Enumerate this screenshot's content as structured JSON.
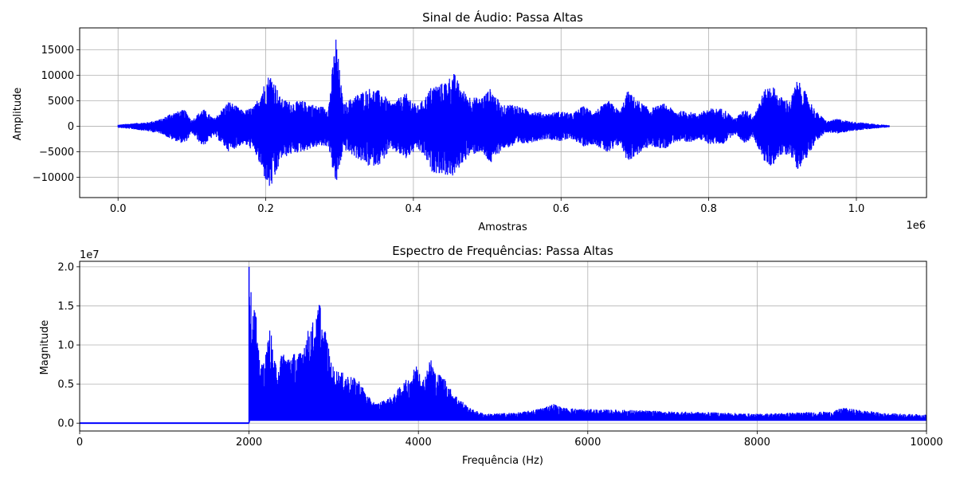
{
  "chart_data": [
    {
      "type": "line",
      "title": "Sinal de Áudio: Passa Altas",
      "xlabel": "Amostras",
      "ylabel": "Amplitude",
      "x_offset_text": "1e6",
      "xlim": [
        -52000,
        1095000
      ],
      "ylim": [
        -14000,
        19300
      ],
      "xticks": [
        0,
        200000,
        400000,
        600000,
        800000,
        1000000
      ],
      "xtick_labels": [
        "0.0",
        "0.2",
        "0.4",
        "0.6",
        "0.8",
        "1.0"
      ],
      "yticks": [
        -10000,
        -5000,
        0,
        5000,
        10000,
        15000
      ],
      "ytick_labels": [
        "−10000",
        "−5000",
        "0",
        "5000",
        "10000",
        "15000"
      ],
      "grid": true,
      "color": "#0000ff",
      "series": [
        {
          "x_range": [
            0,
            1045000
          ],
          "envelope_x": [
            0,
            20000,
            40000,
            60000,
            70000,
            90000,
            100000,
            115000,
            130000,
            150000,
            170000,
            185000,
            195000,
            205000,
            212000,
            220000,
            235000,
            250000,
            270000,
            285000,
            295000,
            305000,
            320000,
            340000,
            355000,
            370000,
            380000,
            390000,
            405000,
            415000,
            425000,
            440000,
            455000,
            465000,
            475000,
            490000,
            505000,
            520000,
            535000,
            550000,
            565000,
            580000,
            600000,
            615000,
            630000,
            645000,
            665000,
            680000,
            690000,
            705000,
            720000,
            740000,
            755000,
            770000,
            785000,
            800000,
            820000,
            835000,
            850000,
            860000,
            875000,
            885000,
            895000,
            910000,
            920000,
            930000,
            945000,
            960000,
            975000,
            990000,
            1010000,
            1030000,
            1045000
          ],
          "envelope_top": [
            300,
            600,
            800,
            1500,
            2500,
            3300,
            1200,
            3500,
            1500,
            5000,
            3000,
            4000,
            7500,
            10400,
            9000,
            5500,
            4800,
            5000,
            4000,
            3800,
            18000,
            4300,
            6000,
            7500,
            7000,
            4500,
            5500,
            6500,
            4000,
            5500,
            8000,
            8500,
            10500,
            7500,
            6000,
            5500,
            7500,
            4000,
            4500,
            3500,
            3000,
            2500,
            3000,
            2500,
            4000,
            3000,
            5000,
            3000,
            7000,
            5000,
            3500,
            4500,
            3000,
            3000,
            2500,
            3500,
            3500,
            1500,
            3500,
            2000,
            7000,
            8500,
            6000,
            5000,
            9200,
            7000,
            3000,
            1000,
            1500,
            1000,
            700,
            400,
            200
          ],
          "envelope_bottom": [
            -300,
            -600,
            -1000,
            -1500,
            -2500,
            -3500,
            -1400,
            -4000,
            -1800,
            -5000,
            -3500,
            -5000,
            -9000,
            -12500,
            -11000,
            -6500,
            -5500,
            -5000,
            -4000,
            -4000,
            -12000,
            -4500,
            -6000,
            -8000,
            -7500,
            -4500,
            -5500,
            -6500,
            -4500,
            -6000,
            -9000,
            -9500,
            -10000,
            -7500,
            -6000,
            -5000,
            -7500,
            -4500,
            -4000,
            -3500,
            -3000,
            -2500,
            -3000,
            -2500,
            -4000,
            -3500,
            -5500,
            -3500,
            -7000,
            -5500,
            -4000,
            -4500,
            -3000,
            -3500,
            -2500,
            -3500,
            -3500,
            -1500,
            -3500,
            -2000,
            -7000,
            -8000,
            -6000,
            -5500,
            -8500,
            -7000,
            -3000,
            -1200,
            -1500,
            -1000,
            -700,
            -400,
            -200
          ]
        }
      ]
    },
    {
      "type": "line",
      "title": "Espectro de Frequências: Passa Altas",
      "xlabel": "Frequência (Hz)",
      "ylabel": "Magnitude",
      "y_offset_text": "1e7",
      "xlim": [
        0,
        10000
      ],
      "ylim": [
        -1000000,
        20700000
      ],
      "xticks": [
        0,
        2000,
        4000,
        6000,
        8000,
        10000
      ],
      "xtick_labels": [
        "0",
        "2000",
        "4000",
        "6000",
        "8000",
        "10000"
      ],
      "yticks": [
        0,
        5000000,
        10000000,
        15000000,
        20000000
      ],
      "ytick_labels": [
        "0.0",
        "0.5",
        "1.0",
        "1.5",
        "2.0"
      ],
      "grid": true,
      "color": "#0000ff",
      "series": [
        {
          "cutoff_hz": 2000,
          "flat_value": 0,
          "envelope_x": [
            2000,
            2010,
            2020,
            2050,
            2080,
            2100,
            2150,
            2200,
            2250,
            2300,
            2350,
            2400,
            2450,
            2500,
            2550,
            2600,
            2650,
            2700,
            2750,
            2800,
            2830,
            2870,
            2900,
            2950,
            3000,
            3100,
            3200,
            3300,
            3400,
            3500,
            3600,
            3700,
            3800,
            3900,
            3950,
            4000,
            4050,
            4100,
            4150,
            4200,
            4300,
            4400,
            4500,
            4600,
            4700,
            4800,
            5000,
            5200,
            5400,
            5600,
            5700,
            6000,
            6500,
            7000,
            7500,
            8000,
            8500,
            8900,
            9000,
            9500,
            10000
          ],
          "envelope_top": [
            19000,
            20000,
            17000,
            15000,
            15000,
            10000,
            7500,
            9000,
            12500,
            8000,
            7500,
            9500,
            8500,
            9000,
            9000,
            9000,
            10500,
            12000,
            13000,
            13500,
            16500,
            12000,
            12000,
            9000,
            7000,
            6500,
            6000,
            5500,
            3500,
            2500,
            3000,
            3500,
            5000,
            6000,
            7000,
            8000,
            5500,
            7000,
            8500,
            6500,
            6000,
            4000,
            3000,
            2000,
            1500,
            1200,
            1300,
            1400,
            1800,
            2500,
            2000,
            1800,
            1700,
            1500,
            1400,
            1200,
            1400,
            1500,
            2000,
            1300,
            1100
          ],
          "envelope_bottom": [
            0,
            300,
            300,
            300,
            300,
            300,
            300,
            300,
            300,
            300,
            300,
            300,
            300,
            300,
            300,
            300,
            300,
            300,
            300,
            300,
            300,
            300,
            300,
            300,
            300,
            300,
            300,
            300,
            300,
            300,
            300,
            300,
            300,
            300,
            300,
            300,
            300,
            300,
            300,
            300,
            300,
            300,
            300,
            300,
            300,
            300,
            300,
            300,
            300,
            300,
            300,
            300,
            300,
            300,
            300,
            300,
            300,
            300,
            300,
            300,
            300
          ],
          "envelope_units_scale": 1000
        }
      ]
    }
  ]
}
